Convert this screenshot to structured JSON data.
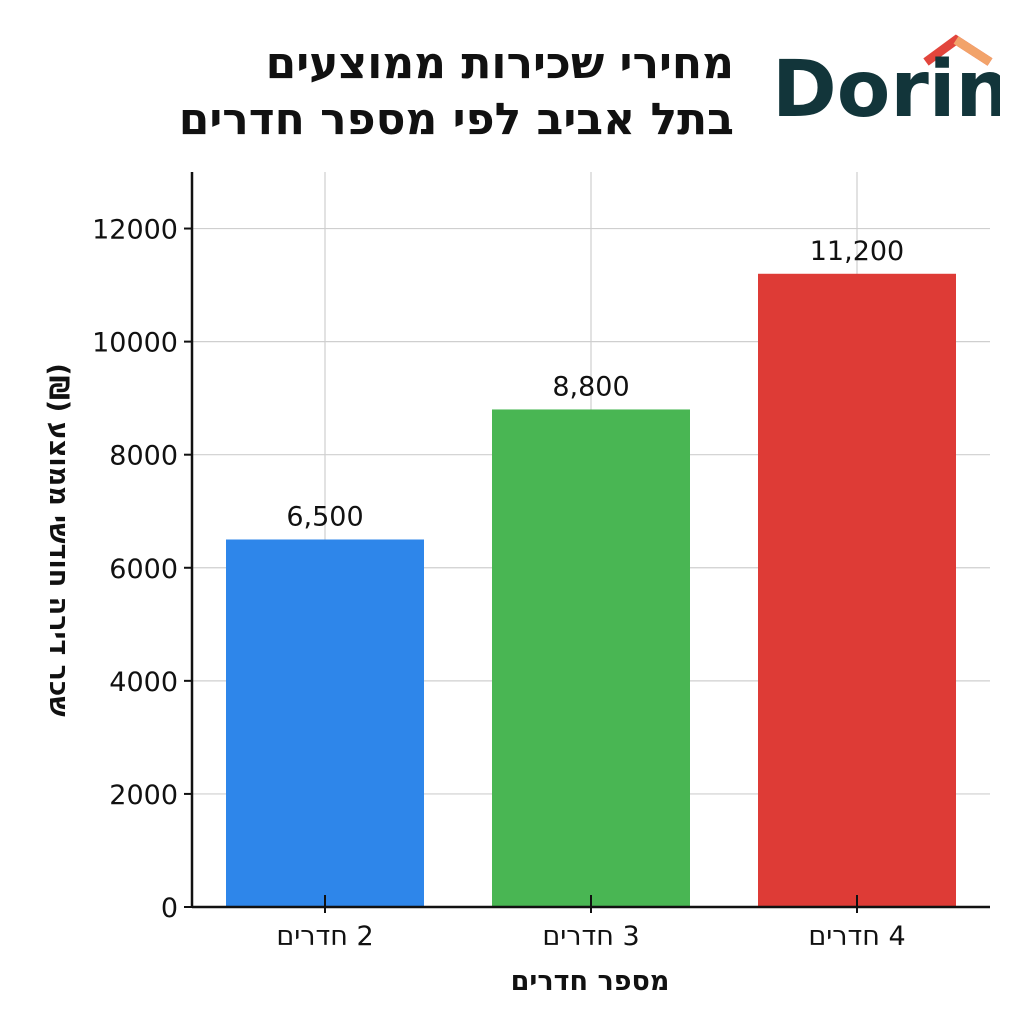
{
  "header": {
    "title_line1": "מחירי שכירות ממוצעים",
    "title_line2": "בתל אביב לפי מספר חדרים"
  },
  "logo": {
    "text": "Dorin",
    "text_color": "#12353a",
    "roof_color": "#e2453c",
    "roof_accent": "#f2a36a"
  },
  "chart_data": {
    "type": "bar",
    "categories": [
      "2 חדרים",
      "3 חדרים",
      "4 חדרים"
    ],
    "values": [
      6500,
      8800,
      11200
    ],
    "value_labels": [
      "6,500",
      "8,800",
      "11,200"
    ],
    "colors": [
      "#2e86ea",
      "#49b653",
      "#de3b36"
    ],
    "xlabel": "מספר חדרים",
    "ylabel": "שכר דירה חודשי ממוצע (₪)",
    "ylim": [
      0,
      13000
    ],
    "yticks": [
      0,
      2000,
      4000,
      6000,
      8000,
      10000,
      12000
    ],
    "grid": true
  }
}
